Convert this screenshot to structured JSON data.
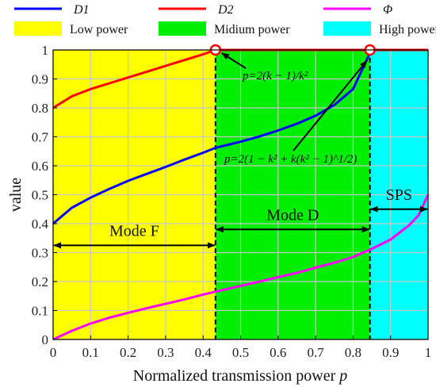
{
  "chart_data": {
    "type": "line",
    "title": "",
    "xlabel": "Normalized transmission power",
    "xlabel_var": "p",
    "ylabel": "value",
    "xlim": [
      0,
      1
    ],
    "ylim": [
      0,
      1
    ],
    "grid": true,
    "x_ticks": [
      "0",
      "0.1",
      "0.2",
      "0.3",
      "0.4",
      "0.5",
      "0.6",
      "0.7",
      "0.8",
      "0.9",
      "1"
    ],
    "y_ticks": [
      "0",
      "0.1",
      "0.2",
      "0.3",
      "0.4",
      "0.5",
      "0.6",
      "0.7",
      "0.8",
      "0.9",
      "1"
    ],
    "regions": [
      {
        "name": "Low power",
        "x_range": [
          0,
          0.433
        ],
        "color": "#ffff00"
      },
      {
        "name": "Midium power",
        "x_range": [
          0.433,
          0.845
        ],
        "color": "#00ee00"
      },
      {
        "name": "High power",
        "x_range": [
          0.845,
          1
        ],
        "color": "#00ffff"
      }
    ],
    "boundaries": [
      0.433,
      0.845
    ],
    "series": [
      {
        "name": "D1",
        "color": "#0000ff",
        "points": [
          [
            0,
            0.4
          ],
          [
            0.05,
            0.455
          ],
          [
            0.1,
            0.49
          ],
          [
            0.15,
            0.52
          ],
          [
            0.2,
            0.548
          ],
          [
            0.25,
            0.572
          ],
          [
            0.3,
            0.596
          ],
          [
            0.35,
            0.621
          ],
          [
            0.4,
            0.645
          ],
          [
            0.433,
            0.662
          ],
          [
            0.5,
            0.683
          ],
          [
            0.55,
            0.701
          ],
          [
            0.6,
            0.722
          ],
          [
            0.65,
            0.745
          ],
          [
            0.7,
            0.773
          ],
          [
            0.75,
            0.81
          ],
          [
            0.8,
            0.865
          ],
          [
            0.845,
            0.99
          ]
        ]
      },
      {
        "name": "D2",
        "color": "#ff0000",
        "points": [
          [
            0,
            0.8
          ],
          [
            0.05,
            0.84
          ],
          [
            0.1,
            0.865
          ],
          [
            0.15,
            0.885
          ],
          [
            0.2,
            0.905
          ],
          [
            0.25,
            0.925
          ],
          [
            0.3,
            0.945
          ],
          [
            0.35,
            0.965
          ],
          [
            0.4,
            0.985
          ],
          [
            0.433,
            1.0
          ],
          [
            0.5,
            1.0
          ],
          [
            0.6,
            1.0
          ],
          [
            0.7,
            1.0
          ],
          [
            0.8,
            1.0
          ],
          [
            0.845,
            1.0
          ],
          [
            0.9,
            1.0
          ],
          [
            1.0,
            1.0
          ]
        ]
      },
      {
        "name": "Φ",
        "color": "#ff00ff",
        "points": [
          [
            0,
            0.0
          ],
          [
            0.05,
            0.03
          ],
          [
            0.1,
            0.055
          ],
          [
            0.15,
            0.075
          ],
          [
            0.2,
            0.092
          ],
          [
            0.25,
            0.108
          ],
          [
            0.3,
            0.123
          ],
          [
            0.35,
            0.138
          ],
          [
            0.4,
            0.155
          ],
          [
            0.433,
            0.165
          ],
          [
            0.5,
            0.185
          ],
          [
            0.55,
            0.2
          ],
          [
            0.6,
            0.215
          ],
          [
            0.65,
            0.23
          ],
          [
            0.7,
            0.248
          ],
          [
            0.75,
            0.265
          ],
          [
            0.8,
            0.285
          ],
          [
            0.845,
            0.31
          ],
          [
            0.9,
            0.345
          ],
          [
            0.95,
            0.395
          ],
          [
            0.975,
            0.43
          ],
          [
            1.0,
            0.5
          ]
        ]
      }
    ],
    "markers": [
      [
        0.433,
        1.0
      ],
      [
        0.845,
        1.0
      ]
    ],
    "annotations": [
      {
        "text": "p=2(k − 1)/k²",
        "arrow_to": [
          0.433,
          1.0
        ]
      },
      {
        "text": "p=2(1 − k² + k(k² − 1)^1/2)",
        "arrow_to": [
          0.845,
          0.99
        ]
      }
    ],
    "modes": [
      {
        "label": "Mode F",
        "x_range": [
          0,
          0.433
        ],
        "y": 0.325
      },
      {
        "label": "Mode D",
        "x_range": [
          0.433,
          0.845
        ],
        "y": 0.38
      },
      {
        "label": "SPS",
        "x_range": [
          0.845,
          1
        ],
        "y": 0.45
      }
    ],
    "legend": [
      {
        "label": "D1",
        "kind": "line",
        "color": "#0000ff"
      },
      {
        "label": "D2",
        "kind": "line",
        "color": "#ff0000"
      },
      {
        "label": "Φ",
        "kind": "line",
        "color": "#ff00ff"
      },
      {
        "label": "Low power",
        "kind": "patch",
        "color": "#ffff00"
      },
      {
        "label": "Midium power",
        "kind": "patch",
        "color": "#00ee00"
      },
      {
        "label": "High power",
        "kind": "patch",
        "color": "#00ffff"
      }
    ]
  }
}
